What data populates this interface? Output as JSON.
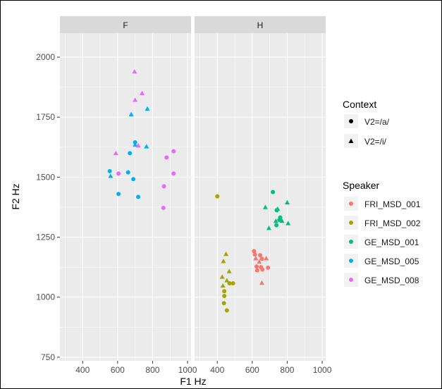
{
  "chart_data": {
    "type": "scatter",
    "xlabel": "F1 Hz",
    "ylabel": "F2 Hz",
    "panels": [
      "F",
      "H"
    ],
    "xlim": [
      270,
      1020
    ],
    "ylim": [
      735,
      2100
    ],
    "x_ticks": [
      400,
      600,
      800,
      1000
    ],
    "y_ticks": [
      750,
      1000,
      1250,
      1500,
      1750,
      2000
    ],
    "grid": true,
    "legends": {
      "context": {
        "title": "Context",
        "entries": [
          {
            "label": "V2=/a/",
            "shape": "circle"
          },
          {
            "label": "V2=/i/",
            "shape": "triangle"
          }
        ]
      },
      "speaker": {
        "title": "Speaker",
        "entries": [
          {
            "label": "FRI_MSD_001",
            "color": "#F8766D"
          },
          {
            "label": "FRI_MSD_002",
            "color": "#A3A500"
          },
          {
            "label": "GE_MSD_001",
            "color": "#00BF7D"
          },
          {
            "label": "GE_MSD_005",
            "color": "#00B0F6"
          },
          {
            "label": "GE_MSD_008",
            "color": "#E76BF3"
          }
        ]
      }
    },
    "points": [
      {
        "panel": "F",
        "speaker": 3,
        "context": "a",
        "x": 555,
        "y": 1525
      },
      {
        "panel": "F",
        "speaker": 3,
        "context": "i",
        "x": 560,
        "y": 1505
      },
      {
        "panel": "F",
        "speaker": 3,
        "context": "a",
        "x": 605,
        "y": 1430
      },
      {
        "panel": "F",
        "speaker": 3,
        "context": "a",
        "x": 660,
        "y": 1520
      },
      {
        "panel": "F",
        "speaker": 3,
        "context": "a",
        "x": 670,
        "y": 1600
      },
      {
        "panel": "F",
        "speaker": 3,
        "context": "a",
        "x": 690,
        "y": 1492
      },
      {
        "panel": "F",
        "speaker": 3,
        "context": "a",
        "x": 718,
        "y": 1418
      },
      {
        "panel": "F",
        "speaker": 3,
        "context": "a",
        "x": 700,
        "y": 1645
      },
      {
        "panel": "F",
        "speaker": 3,
        "context": "i",
        "x": 678,
        "y": 1762
      },
      {
        "panel": "F",
        "speaker": 3,
        "context": "i",
        "x": 700,
        "y": 1635
      },
      {
        "panel": "F",
        "speaker": 3,
        "context": "i",
        "x": 770,
        "y": 1785
      },
      {
        "panel": "F",
        "speaker": 3,
        "context": "i",
        "x": 765,
        "y": 1628
      },
      {
        "panel": "F",
        "speaker": 4,
        "context": "i",
        "x": 697,
        "y": 1940
      },
      {
        "panel": "F",
        "speaker": 4,
        "context": "i",
        "x": 740,
        "y": 1850
      },
      {
        "panel": "F",
        "speaker": 4,
        "context": "i",
        "x": 700,
        "y": 1822
      },
      {
        "panel": "F",
        "speaker": 4,
        "context": "i",
        "x": 590,
        "y": 1600
      },
      {
        "panel": "F",
        "speaker": 4,
        "context": "i",
        "x": 718,
        "y": 1632
      },
      {
        "panel": "F",
        "speaker": 4,
        "context": "a",
        "x": 605,
        "y": 1515
      },
      {
        "panel": "F",
        "speaker": 4,
        "context": "a",
        "x": 880,
        "y": 1582
      },
      {
        "panel": "F",
        "speaker": 4,
        "context": "a",
        "x": 920,
        "y": 1608
      },
      {
        "panel": "F",
        "speaker": 4,
        "context": "a",
        "x": 920,
        "y": 1515
      },
      {
        "panel": "F",
        "speaker": 4,
        "context": "a",
        "x": 865,
        "y": 1462
      },
      {
        "panel": "F",
        "speaker": 4,
        "context": "a",
        "x": 862,
        "y": 1372
      },
      {
        "panel": "H",
        "speaker": 1,
        "context": "a",
        "x": 400,
        "y": 1420
      },
      {
        "panel": "H",
        "speaker": 1,
        "context": "i",
        "x": 450,
        "y": 1180
      },
      {
        "panel": "H",
        "speaker": 1,
        "context": "i",
        "x": 435,
        "y": 1150
      },
      {
        "panel": "H",
        "speaker": 1,
        "context": "i",
        "x": 468,
        "y": 1108
      },
      {
        "panel": "H",
        "speaker": 1,
        "context": "i",
        "x": 428,
        "y": 1085
      },
      {
        "panel": "H",
        "speaker": 1,
        "context": "i",
        "x": 455,
        "y": 1070
      },
      {
        "panel": "H",
        "speaker": 1,
        "context": "a",
        "x": 470,
        "y": 1058
      },
      {
        "panel": "H",
        "speaker": 1,
        "context": "a",
        "x": 490,
        "y": 1058
      },
      {
        "panel": "H",
        "speaker": 1,
        "context": "i",
        "x": 432,
        "y": 1048
      },
      {
        "panel": "H",
        "speaker": 1,
        "context": "a",
        "x": 440,
        "y": 1025
      },
      {
        "panel": "H",
        "speaker": 1,
        "context": "a",
        "x": 440,
        "y": 1005
      },
      {
        "panel": "H",
        "speaker": 1,
        "context": "a",
        "x": 438,
        "y": 975
      },
      {
        "panel": "H",
        "speaker": 1,
        "context": "a",
        "x": 455,
        "y": 945
      },
      {
        "panel": "H",
        "speaker": 0,
        "context": "a",
        "x": 610,
        "y": 1192
      },
      {
        "panel": "H",
        "speaker": 0,
        "context": "a",
        "x": 615,
        "y": 1178
      },
      {
        "panel": "H",
        "speaker": 0,
        "context": "a",
        "x": 645,
        "y": 1175
      },
      {
        "panel": "H",
        "speaker": 0,
        "context": "i",
        "x": 620,
        "y": 1162
      },
      {
        "panel": "H",
        "speaker": 0,
        "context": "a",
        "x": 655,
        "y": 1160
      },
      {
        "panel": "H",
        "speaker": 0,
        "context": "i",
        "x": 680,
        "y": 1162
      },
      {
        "panel": "H",
        "speaker": 0,
        "context": "i",
        "x": 640,
        "y": 1148
      },
      {
        "panel": "H",
        "speaker": 0,
        "context": "a",
        "x": 625,
        "y": 1128
      },
      {
        "panel": "H",
        "speaker": 0,
        "context": "a",
        "x": 650,
        "y": 1125
      },
      {
        "panel": "H",
        "speaker": 0,
        "context": "a",
        "x": 690,
        "y": 1123
      },
      {
        "panel": "H",
        "speaker": 0,
        "context": "a",
        "x": 628,
        "y": 1112
      },
      {
        "panel": "H",
        "speaker": 0,
        "context": "a",
        "x": 658,
        "y": 1115
      },
      {
        "panel": "H",
        "speaker": 0,
        "context": "i",
        "x": 655,
        "y": 1060
      },
      {
        "panel": "H",
        "speaker": 2,
        "context": "a",
        "x": 718,
        "y": 1438
      },
      {
        "panel": "H",
        "speaker": 2,
        "context": "i",
        "x": 800,
        "y": 1395
      },
      {
        "panel": "H",
        "speaker": 2,
        "context": "i",
        "x": 675,
        "y": 1375
      },
      {
        "panel": "H",
        "speaker": 2,
        "context": "i",
        "x": 745,
        "y": 1368
      },
      {
        "panel": "H",
        "speaker": 2,
        "context": "a",
        "x": 740,
        "y": 1362
      },
      {
        "panel": "H",
        "speaker": 2,
        "context": "a",
        "x": 760,
        "y": 1332
      },
      {
        "panel": "H",
        "speaker": 2,
        "context": "a",
        "x": 755,
        "y": 1322
      },
      {
        "panel": "H",
        "speaker": 2,
        "context": "i",
        "x": 735,
        "y": 1318
      },
      {
        "panel": "H",
        "speaker": 2,
        "context": "i",
        "x": 770,
        "y": 1318
      },
      {
        "panel": "H",
        "speaker": 2,
        "context": "i",
        "x": 805,
        "y": 1308
      },
      {
        "panel": "H",
        "speaker": 2,
        "context": "a",
        "x": 738,
        "y": 1300
      },
      {
        "panel": "H",
        "speaker": 2,
        "context": "i",
        "x": 695,
        "y": 1288
      }
    ]
  }
}
